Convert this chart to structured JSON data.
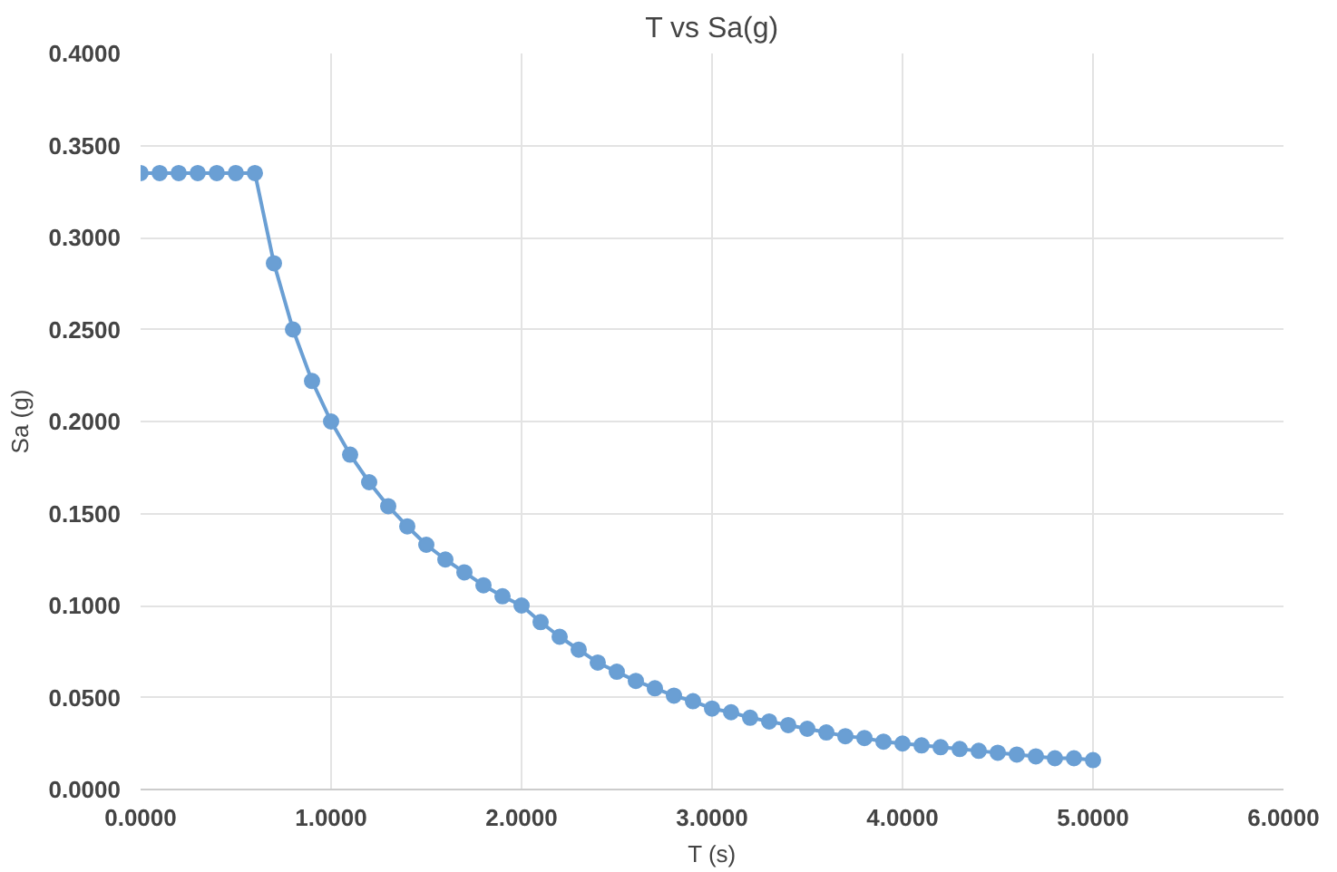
{
  "chart_data": {
    "type": "line",
    "title": "T vs Sa(g)",
    "xlabel": "T (s)",
    "ylabel": "Sa (g)",
    "x": [
      0,
      0.1,
      0.2,
      0.3,
      0.4,
      0.5,
      0.6,
      0.7,
      0.8,
      0.9,
      1.0,
      1.1,
      1.2,
      1.3,
      1.4,
      1.5,
      1.6,
      1.7,
      1.8,
      1.9,
      2.0,
      2.1,
      2.2,
      2.3,
      2.4,
      2.5,
      2.6,
      2.7,
      2.8,
      2.9,
      3.0,
      3.1,
      3.2,
      3.3,
      3.4,
      3.5,
      3.6,
      3.7,
      3.8,
      3.9,
      4.0,
      4.1,
      4.2,
      4.3,
      4.4,
      4.5,
      4.6,
      4.7,
      4.8,
      4.9,
      5.0
    ],
    "series": [
      {
        "color": "#6a9fd4",
        "values": [
          0.335,
          0.335,
          0.335,
          0.335,
          0.335,
          0.335,
          0.335,
          0.286,
          0.25,
          0.222,
          0.2,
          0.182,
          0.167,
          0.154,
          0.143,
          0.133,
          0.125,
          0.118,
          0.111,
          0.105,
          0.1,
          0.091,
          0.083,
          0.076,
          0.069,
          0.064,
          0.059,
          0.055,
          0.051,
          0.048,
          0.044,
          0.042,
          0.039,
          0.037,
          0.035,
          0.033,
          0.031,
          0.029,
          0.028,
          0.026,
          0.025,
          0.024,
          0.023,
          0.022,
          0.021,
          0.02,
          0.019,
          0.018,
          0.017,
          0.017,
          0.016
        ]
      }
    ],
    "xlim": [
      0,
      6
    ],
    "ylim": [
      0,
      0.4
    ],
    "xticks": [
      {
        "value": 0,
        "label": "0.0000"
      },
      {
        "value": 1,
        "label": "1.0000"
      },
      {
        "value": 2,
        "label": "2.0000"
      },
      {
        "value": 3,
        "label": "3.0000"
      },
      {
        "value": 4,
        "label": "4.0000"
      },
      {
        "value": 5,
        "label": "5.0000"
      },
      {
        "value": 6,
        "label": "6.0000"
      }
    ],
    "yticks": [
      {
        "value": 0,
        "label": "0.0000"
      },
      {
        "value": 0.05,
        "label": "0.0500"
      },
      {
        "value": 0.1,
        "label": "0.1000"
      },
      {
        "value": 0.15,
        "label": "0.1500"
      },
      {
        "value": 0.2,
        "label": "0.2000"
      },
      {
        "value": 0.25,
        "label": "0.2500"
      },
      {
        "value": 0.3,
        "label": "0.3000"
      },
      {
        "value": 0.35,
        "label": "0.3500"
      },
      {
        "value": 0.4,
        "label": "0.4000"
      }
    ],
    "grid": true,
    "marker": "circle",
    "line_style": "solid"
  }
}
